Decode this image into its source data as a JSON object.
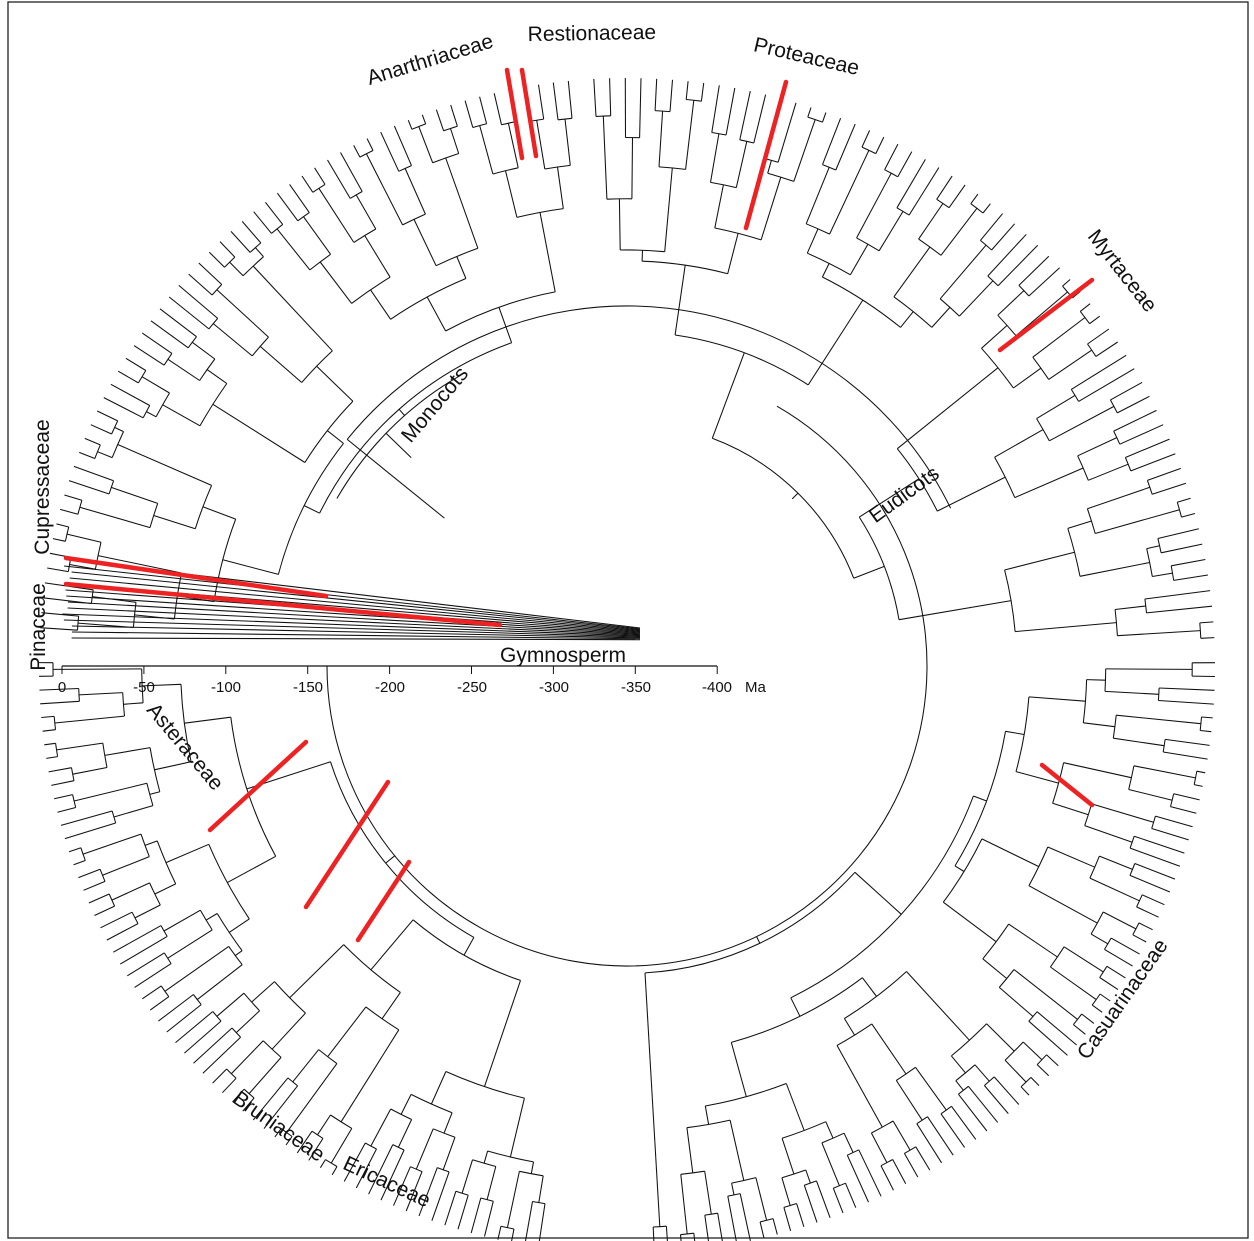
{
  "figure": {
    "families": {
      "anarthriaceae": "Anarthriaceae",
      "restionaceae": "Restionaceae",
      "proteaceae": "Proteaceae",
      "myrtaceae": "Myrtaceae",
      "cupressaceae": "Cupressaceae",
      "pinaceae": "Pinaceae",
      "casuarinaceae": "Casuarinaceae",
      "asteraceae": "Asteraceae",
      "bruniaceae": "Bruniaceae",
      "ericaceae": "Ericaceae"
    },
    "clades": {
      "monocots": "Monocots",
      "eudicots": "Eudicots",
      "gymnosperm": "Gymnosperm"
    },
    "time_axis": {
      "unit": "Ma",
      "ticks": [
        "0",
        "-50",
        "-100",
        "-150",
        "-200",
        "-250",
        "-300",
        "-350",
        "-400"
      ]
    },
    "colors": {
      "highlight": "#ee2222",
      "branches": "#111111",
      "background": "#ffffff"
    }
  }
}
